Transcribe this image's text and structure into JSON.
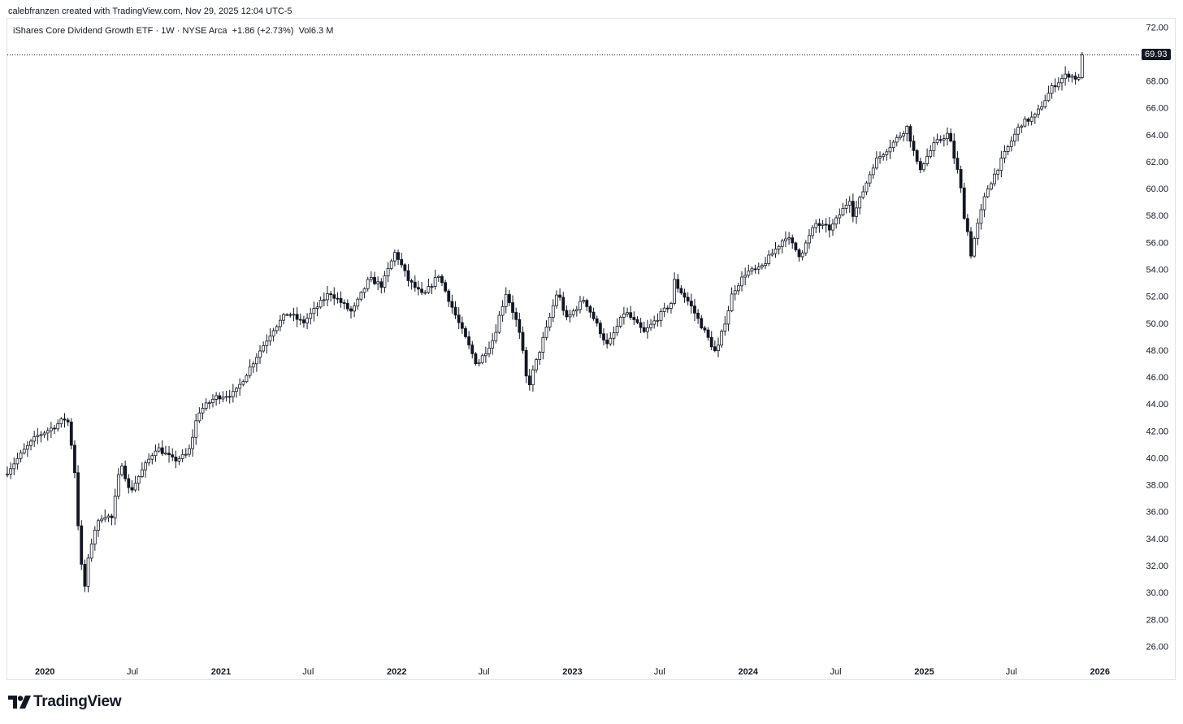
{
  "header": {
    "text": "calebfranzen created with TradingView.com, Nov 29, 2025 12:04 UTC-5"
  },
  "legend": {
    "title": "iShares Core Dividend Growth ETF · 1W · NYSE Arca",
    "change": "+1.86 (+2.73%)",
    "volume_label": "Vol",
    "volume_value": "6.3 M"
  },
  "last_price_tag": "69.93",
  "footer": {
    "brand": "TradingView"
  },
  "colors": {
    "candle": "#131722",
    "background": "#ffffff",
    "tag_bg": "#131722",
    "border": "#e0e3eb"
  },
  "chart_data": {
    "type": "candlestick",
    "interval": "1W",
    "y_ticks": [
      72,
      70,
      68,
      66,
      64,
      62,
      60,
      58,
      56,
      54,
      52,
      50,
      48,
      46,
      44,
      42,
      40,
      38,
      36,
      34,
      32,
      30,
      28,
      26
    ],
    "ylim": [
      25,
      72.5
    ],
    "x_ticks": [
      {
        "label": "2020",
        "date": "2020-01-01",
        "bold": true
      },
      {
        "label": "Jul",
        "date": "2020-07-01",
        "bold": false
      },
      {
        "label": "2021",
        "date": "2021-01-01",
        "bold": true
      },
      {
        "label": "Jul",
        "date": "2021-07-01",
        "bold": false
      },
      {
        "label": "2022",
        "date": "2022-01-01",
        "bold": true
      },
      {
        "label": "Jul",
        "date": "2022-07-01",
        "bold": false
      },
      {
        "label": "2023",
        "date": "2023-01-01",
        "bold": true
      },
      {
        "label": "Jul",
        "date": "2023-07-01",
        "bold": false
      },
      {
        "label": "2024",
        "date": "2024-01-01",
        "bold": true
      },
      {
        "label": "Jul",
        "date": "2024-07-01",
        "bold": false
      },
      {
        "label": "2025",
        "date": "2025-01-01",
        "bold": true
      },
      {
        "label": "Jul",
        "date": "2025-07-01",
        "bold": false
      },
      {
        "label": "2026",
        "date": "2026-01-01",
        "bold": true
      }
    ],
    "xlim": [
      "2019-10-15",
      "2026-03-20"
    ],
    "last_price": 69.93,
    "anchors": [
      [
        "2019-10-15",
        39.0
      ],
      [
        "2019-11-20",
        40.6
      ],
      [
        "2019-12-15",
        41.6
      ],
      [
        "2020-01-20",
        42.3
      ],
      [
        "2020-02-10",
        42.9
      ],
      [
        "2020-02-20",
        42.6
      ],
      [
        "2020-03-05",
        38.5
      ],
      [
        "2020-03-20",
        29.5
      ],
      [
        "2020-04-10",
        34.5
      ],
      [
        "2020-05-01",
        35.8
      ],
      [
        "2020-05-20",
        35.5
      ],
      [
        "2020-06-08",
        39.8
      ],
      [
        "2020-06-25",
        37.4
      ],
      [
        "2020-07-20",
        39.0
      ],
      [
        "2020-08-20",
        40.8
      ],
      [
        "2020-09-25",
        39.8
      ],
      [
        "2020-10-25",
        40.3
      ],
      [
        "2020-11-15",
        43.4
      ],
      [
        "2020-12-20",
        44.5
      ],
      [
        "2021-01-30",
        44.8
      ],
      [
        "2021-03-15",
        47.5
      ],
      [
        "2021-04-20",
        49.6
      ],
      [
        "2021-05-20",
        50.8
      ],
      [
        "2021-06-20",
        50.0
      ],
      [
        "2021-08-15",
        52.3
      ],
      [
        "2021-09-30",
        50.8
      ],
      [
        "2021-11-05",
        53.3
      ],
      [
        "2021-12-01",
        52.8
      ],
      [
        "2021-12-29",
        55.3
      ],
      [
        "2022-01-25",
        53.2
      ],
      [
        "2022-02-25",
        52.0
      ],
      [
        "2022-03-29",
        53.6
      ],
      [
        "2022-05-10",
        50.0
      ],
      [
        "2022-06-17",
        46.9
      ],
      [
        "2022-07-20",
        48.8
      ],
      [
        "2022-08-16",
        52.3
      ],
      [
        "2022-09-10",
        49.8
      ],
      [
        "2022-09-30",
        45.1
      ],
      [
        "2022-11-10",
        49.8
      ],
      [
        "2022-12-01",
        52.4
      ],
      [
        "2022-12-20",
        50.3
      ],
      [
        "2023-01-25",
        51.8
      ],
      [
        "2023-03-15",
        48.3
      ],
      [
        "2023-04-20",
        50.9
      ],
      [
        "2023-05-30",
        49.3
      ],
      [
        "2023-07-25",
        51.5
      ],
      [
        "2023-08-01",
        53.0
      ],
      [
        "2023-09-01",
        51.5
      ],
      [
        "2023-10-01",
        49.5
      ],
      [
        "2023-10-27",
        47.7
      ],
      [
        "2023-11-30",
        52.3
      ],
      [
        "2023-12-28",
        53.8
      ],
      [
        "2024-01-25",
        54.0
      ],
      [
        "2024-03-20",
        56.5
      ],
      [
        "2024-04-18",
        55.0
      ],
      [
        "2024-05-20",
        57.4
      ],
      [
        "2024-06-20",
        57.0
      ],
      [
        "2024-07-31",
        59.3
      ],
      [
        "2024-08-07",
        58.0
      ],
      [
        "2024-09-20",
        62.0
      ],
      [
        "2024-10-31",
        63.5
      ],
      [
        "2024-11-27",
        64.6
      ],
      [
        "2024-12-20",
        61.3
      ],
      [
        "2025-01-22",
        63.3
      ],
      [
        "2025-02-20",
        64.1
      ],
      [
        "2025-03-10",
        61.5
      ],
      [
        "2025-04-08",
        55.3
      ],
      [
        "2025-05-10",
        59.8
      ],
      [
        "2025-06-20",
        62.8
      ],
      [
        "2025-07-20",
        64.8
      ],
      [
        "2025-08-20",
        65.4
      ],
      [
        "2025-09-25",
        67.6
      ],
      [
        "2025-10-25",
        68.5
      ],
      [
        "2025-11-21",
        68.07
      ],
      [
        "2025-11-28",
        69.93
      ]
    ]
  }
}
